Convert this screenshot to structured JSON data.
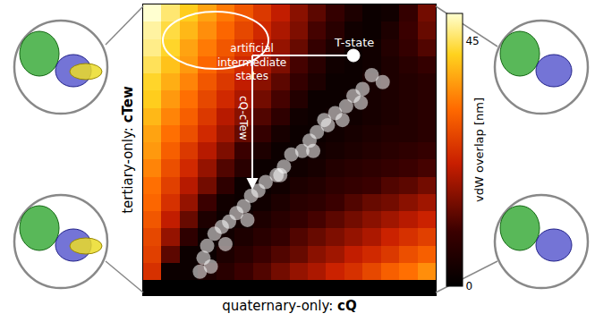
{
  "chart_data": {
    "type": "heatmap",
    "xlabel": "quaternary-only: cQ",
    "ylabel": "tertiary-only: cTew",
    "colorbar_title": "vdW overlap [nm]",
    "zlim": [
      0,
      50
    ],
    "zticks": [
      0,
      45
    ],
    "tick_labels": false,
    "cells": [
      [
        25,
        2,
        2,
        5,
        7,
        10,
        12,
        15,
        18,
        20,
        23,
        25,
        28,
        31,
        33,
        36
      ],
      [
        27,
        13,
        2,
        2,
        5,
        7,
        10,
        12,
        14,
        17,
        19,
        22,
        24,
        26,
        29,
        31
      ],
      [
        28,
        18,
        8,
        2,
        3,
        5,
        7,
        9,
        12,
        14,
        16,
        18,
        20,
        23,
        25,
        27
      ],
      [
        30,
        22,
        14,
        5,
        2,
        3,
        5,
        7,
        9,
        11,
        13,
        15,
        17,
        19,
        21,
        23
      ],
      [
        32,
        25,
        18,
        10,
        3,
        2,
        3,
        5,
        7,
        8,
        10,
        12,
        14,
        15,
        17,
        19
      ],
      [
        33,
        27,
        21,
        15,
        8,
        2,
        2,
        3,
        5,
        6,
        8,
        9,
        10,
        12,
        13,
        15
      ],
      [
        35,
        29,
        24,
        18,
        12,
        7,
        2,
        2,
        3,
        4,
        6,
        7,
        8,
        9,
        10,
        11
      ],
      [
        37,
        31,
        26,
        21,
        16,
        10,
        5,
        2,
        2,
        3,
        4,
        5,
        6,
        7,
        8,
        9
      ],
      [
        38,
        33,
        29,
        24,
        19,
        14,
        9,
        4,
        2,
        2,
        3,
        4,
        5,
        6,
        6,
        7
      ],
      [
        40,
        35,
        31,
        26,
        21,
        17,
        12,
        8,
        3,
        2,
        3,
        3,
        4,
        5,
        6,
        7
      ],
      [
        42,
        37,
        33,
        28,
        24,
        20,
        15,
        11,
        6,
        2,
        2,
        3,
        4,
        5,
        6,
        7
      ],
      [
        43,
        39,
        35,
        30,
        26,
        22,
        17,
        13,
        9,
        5,
        2,
        2,
        4,
        5,
        6,
        7
      ],
      [
        45,
        41,
        37,
        32,
        28,
        24,
        20,
        16,
        11,
        7,
        3,
        2,
        3,
        5,
        7,
        9
      ],
      [
        47,
        43,
        38,
        34,
        30,
        26,
        22,
        18,
        14,
        9,
        5,
        2,
        3,
        6,
        9,
        12
      ],
      [
        48,
        44,
        40,
        36,
        32,
        28,
        24,
        20,
        16,
        11,
        7,
        3,
        2,
        5,
        10,
        14
      ],
      [
        50,
        46,
        42,
        38,
        34,
        30,
        26,
        22,
        17,
        13,
        9,
        5,
        2,
        3,
        9,
        15
      ]
    ],
    "points": {
      "x": [
        12.6,
        12.0,
        11.5,
        11.0,
        10.6,
        10.0,
        9.6,
        9.0,
        8.6,
        8.2,
        7.6,
        7.2,
        6.8,
        6.2,
        5.8,
        5.4,
        5.0,
        4.6,
        4.2,
        3.8,
        3.4,
        3.0,
        2.8,
        3.2,
        2.6,
        7.0,
        8.8,
        10.4,
        5.2,
        4.0,
        9.4,
        11.4
      ],
      "y": [
        11.0,
        11.4,
        10.6,
        10.2,
        9.6,
        9.2,
        8.5,
        8.1,
        7.6,
        7.0,
        6.8,
        6.1,
        5.6,
        5.2,
        4.7,
        4.4,
        3.8,
        3.4,
        2.9,
        2.6,
        2.2,
        1.5,
        0.8,
        0.3,
        0.0,
        5.6,
        7.0,
        8.8,
        3.0,
        1.6,
        8.8,
        9.8
      ]
    },
    "annotations": [
      "artificial intermediate states",
      "T-state",
      "cQ-cTew"
    ]
  }
}
